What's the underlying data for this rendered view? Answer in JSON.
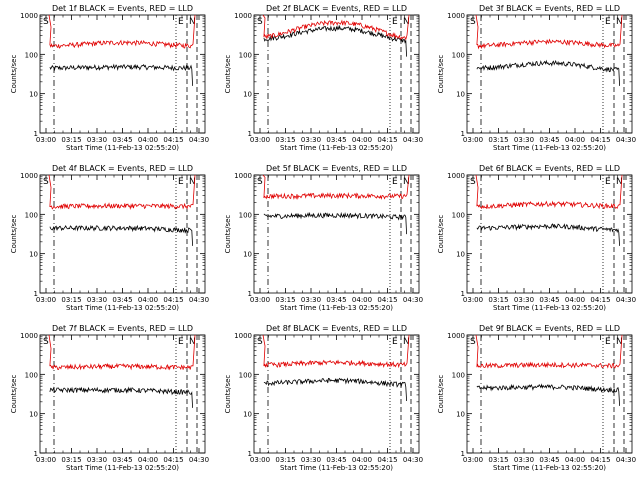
{
  "colors": {
    "events": "#000000",
    "lld": "#e00000",
    "axes": "#000000"
  },
  "start_time_label": "Start Time (11-Feb-13 02:55:20)",
  "marker_labels": {
    "s": "S",
    "e": "E",
    "n": "N"
  },
  "chart_data": [
    {
      "type": "line",
      "title": "Det 1f BLACK = Events, RED = LLD",
      "xlabel": "Start Time (11-Feb-13 02:55:20)",
      "ylabel": "Counts/sec",
      "y_scale": "log",
      "ylim": [
        1,
        1000
      ],
      "x_ticks": [
        "03:00",
        "03:15",
        "03:30",
        "03:45",
        "04:00",
        "04:15",
        "04:30"
      ],
      "y_ticks": [
        "1",
        "10",
        "100",
        "1000"
      ],
      "marker_text": [
        "S",
        "E",
        "N"
      ],
      "series": [
        {
          "name": "BLACK = Events",
          "color": "#000000",
          "level": 45,
          "points": [
            [
              0.05,
              45
            ],
            [
              0.5,
              48
            ],
            [
              0.95,
              45
            ]
          ]
        },
        {
          "name": "RED = LLD",
          "color": "#e00000",
          "level": 165,
          "points": [
            [
              0.05,
              165
            ],
            [
              0.5,
              200
            ],
            [
              0.95,
              165
            ]
          ]
        }
      ]
    },
    {
      "type": "line",
      "title": "Det 2f BLACK = Events, RED = LLD",
      "xlabel": "Start Time (11-Feb-13 02:55:20)",
      "ylabel": "Counts/sec",
      "y_scale": "log",
      "ylim": [
        1,
        1000
      ],
      "x_ticks": [
        "03:00",
        "03:15",
        "03:30",
        "03:45",
        "04:00",
        "04:15",
        "04:30"
      ],
      "y_ticks": [
        "1",
        "10",
        "100",
        "1000"
      ],
      "marker_text": [
        "S",
        "E",
        "N"
      ],
      "series": [
        {
          "name": "BLACK = Events",
          "color": "#000000",
          "level": 250,
          "points": [
            [
              0.05,
              250
            ],
            [
              0.5,
              460
            ],
            [
              0.95,
              220
            ]
          ]
        },
        {
          "name": "RED = LLD",
          "color": "#e00000",
          "level": 280,
          "points": [
            [
              0.05,
              280
            ],
            [
              0.5,
              640
            ],
            [
              0.95,
              260
            ]
          ]
        }
      ]
    },
    {
      "type": "line",
      "title": "Det 3f BLACK = Events, RED = LLD",
      "xlabel": "Start Time (11-Feb-13 02:55:20)",
      "ylabel": "Counts/sec",
      "y_scale": "log",
      "ylim": [
        1,
        1000
      ],
      "x_ticks": [
        "03:00",
        "03:15",
        "03:30",
        "03:45",
        "04:00",
        "04:15",
        "04:30"
      ],
      "y_ticks": [
        "1",
        "10",
        "100",
        "1000"
      ],
      "marker_text": [
        "S",
        "E",
        "N"
      ],
      "series": [
        {
          "name": "BLACK = Events",
          "color": "#000000",
          "level": 45,
          "points": [
            [
              0.05,
              45
            ],
            [
              0.5,
              60
            ],
            [
              0.95,
              40
            ]
          ]
        },
        {
          "name": "RED = LLD",
          "color": "#e00000",
          "level": 165,
          "points": [
            [
              0.05,
              165
            ],
            [
              0.5,
              210
            ],
            [
              0.95,
              165
            ]
          ]
        }
      ]
    },
    {
      "type": "line",
      "title": "Det 4f BLACK = Events, RED = LLD",
      "xlabel": "Start Time (11-Feb-13 02:55:20)",
      "ylabel": "Counts/sec",
      "y_scale": "log",
      "ylim": [
        1,
        1000
      ],
      "x_ticks": [
        "03:00",
        "03:15",
        "03:30",
        "03:45",
        "04:00",
        "04:15",
        "04:30"
      ],
      "y_ticks": [
        "1",
        "10",
        "100",
        "1000"
      ],
      "marker_text": [
        "S",
        "E",
        "N"
      ],
      "series": [
        {
          "name": "BLACK = Events",
          "color": "#000000",
          "level": 45,
          "points": [
            [
              0.05,
              45
            ],
            [
              0.5,
              45
            ],
            [
              0.95,
              40
            ]
          ]
        },
        {
          "name": "RED = LLD",
          "color": "#e00000",
          "level": 160,
          "points": [
            [
              0.05,
              160
            ],
            [
              0.5,
              165
            ],
            [
              0.95,
              160
            ]
          ]
        }
      ]
    },
    {
      "type": "line",
      "title": "Det 5f BLACK = Events, RED = LLD",
      "xlabel": "Start Time (11-Feb-13 02:55:20)",
      "ylabel": "Counts/sec",
      "y_scale": "log",
      "ylim": [
        1,
        1000
      ],
      "x_ticks": [
        "03:00",
        "03:15",
        "03:30",
        "03:45",
        "04:00",
        "04:15",
        "04:30"
      ],
      "y_ticks": [
        "1",
        "10",
        "100",
        "1000"
      ],
      "marker_text": [
        "S",
        "E",
        "N"
      ],
      "series": [
        {
          "name": "BLACK = Events",
          "color": "#000000",
          "level": 90,
          "points": [
            [
              0.05,
              90
            ],
            [
              0.5,
              95
            ],
            [
              0.95,
              85
            ]
          ]
        },
        {
          "name": "RED = LLD",
          "color": "#e00000",
          "level": 290,
          "points": [
            [
              0.05,
              290
            ],
            [
              0.5,
              300
            ],
            [
              0.95,
              290
            ]
          ]
        }
      ]
    },
    {
      "type": "line",
      "title": "Det 6f BLACK = Events, RED = LLD",
      "xlabel": "Start Time (11-Feb-13 02:55:20)",
      "ylabel": "Counts/sec",
      "y_scale": "log",
      "ylim": [
        1,
        1000
      ],
      "x_ticks": [
        "03:00",
        "03:15",
        "03:30",
        "03:45",
        "04:00",
        "04:15",
        "04:30"
      ],
      "y_ticks": [
        "1",
        "10",
        "100",
        "1000"
      ],
      "marker_text": [
        "S",
        "E",
        "N"
      ],
      "series": [
        {
          "name": "BLACK = Events",
          "color": "#000000",
          "level": 45,
          "points": [
            [
              0.05,
              45
            ],
            [
              0.5,
              50
            ],
            [
              0.95,
              40
            ]
          ]
        },
        {
          "name": "RED = LLD",
          "color": "#e00000",
          "level": 160,
          "points": [
            [
              0.05,
              160
            ],
            [
              0.5,
              185
            ],
            [
              0.95,
              160
            ]
          ]
        }
      ]
    },
    {
      "type": "line",
      "title": "Det 7f BLACK = Events, RED = LLD",
      "xlabel": "Start Time (11-Feb-13 02:55:20)",
      "ylabel": "Counts/sec",
      "y_scale": "log",
      "ylim": [
        1,
        1000
      ],
      "x_ticks": [
        "03:00",
        "03:15",
        "03:30",
        "03:45",
        "04:00",
        "04:15",
        "04:30"
      ],
      "y_ticks": [
        "1",
        "10",
        "100",
        "1000"
      ],
      "marker_text": [
        "S",
        "E",
        "N"
      ],
      "series": [
        {
          "name": "BLACK = Events",
          "color": "#000000",
          "level": 40,
          "points": [
            [
              0.05,
              40
            ],
            [
              0.5,
              40
            ],
            [
              0.95,
              35
            ]
          ]
        },
        {
          "name": "RED = LLD",
          "color": "#e00000",
          "level": 150,
          "points": [
            [
              0.05,
              150
            ],
            [
              0.5,
              160
            ],
            [
              0.95,
              150
            ]
          ]
        }
      ]
    },
    {
      "type": "line",
      "title": "Det 8f BLACK = Events, RED = LLD",
      "xlabel": "Start Time (11-Feb-13 02:55:20)",
      "ylabel": "Counts/sec",
      "y_scale": "log",
      "ylim": [
        1,
        1000
      ],
      "x_ticks": [
        "03:00",
        "03:15",
        "03:30",
        "03:45",
        "04:00",
        "04:15",
        "04:30"
      ],
      "y_ticks": [
        "1",
        "10",
        "100",
        "1000"
      ],
      "marker_text": [
        "S",
        "E",
        "N"
      ],
      "series": [
        {
          "name": "BLACK = Events",
          "color": "#000000",
          "level": 60,
          "points": [
            [
              0.05,
              60
            ],
            [
              0.5,
              70
            ],
            [
              0.95,
              55
            ]
          ]
        },
        {
          "name": "RED = LLD",
          "color": "#e00000",
          "level": 175,
          "points": [
            [
              0.05,
              175
            ],
            [
              0.5,
              200
            ],
            [
              0.95,
              175
            ]
          ]
        }
      ]
    },
    {
      "type": "line",
      "title": "Det 9f BLACK = Events, RED = LLD",
      "xlabel": "Start Time (11-Feb-13 02:55:20)",
      "ylabel": "Counts/sec",
      "y_scale": "log",
      "ylim": [
        1,
        1000
      ],
      "x_ticks": [
        "03:00",
        "03:15",
        "03:30",
        "03:45",
        "04:00",
        "04:15",
        "04:30"
      ],
      "y_ticks": [
        "1",
        "10",
        "100",
        "1000"
      ],
      "marker_text": [
        "S",
        "E",
        "N"
      ],
      "series": [
        {
          "name": "BLACK = Events",
          "color": "#000000",
          "level": 45,
          "points": [
            [
              0.05,
              45
            ],
            [
              0.5,
              48
            ],
            [
              0.95,
              40
            ]
          ]
        },
        {
          "name": "RED = LLD",
          "color": "#e00000",
          "level": 165,
          "points": [
            [
              0.05,
              165
            ],
            [
              0.5,
              175
            ],
            [
              0.95,
              165
            ]
          ]
        }
      ]
    }
  ]
}
